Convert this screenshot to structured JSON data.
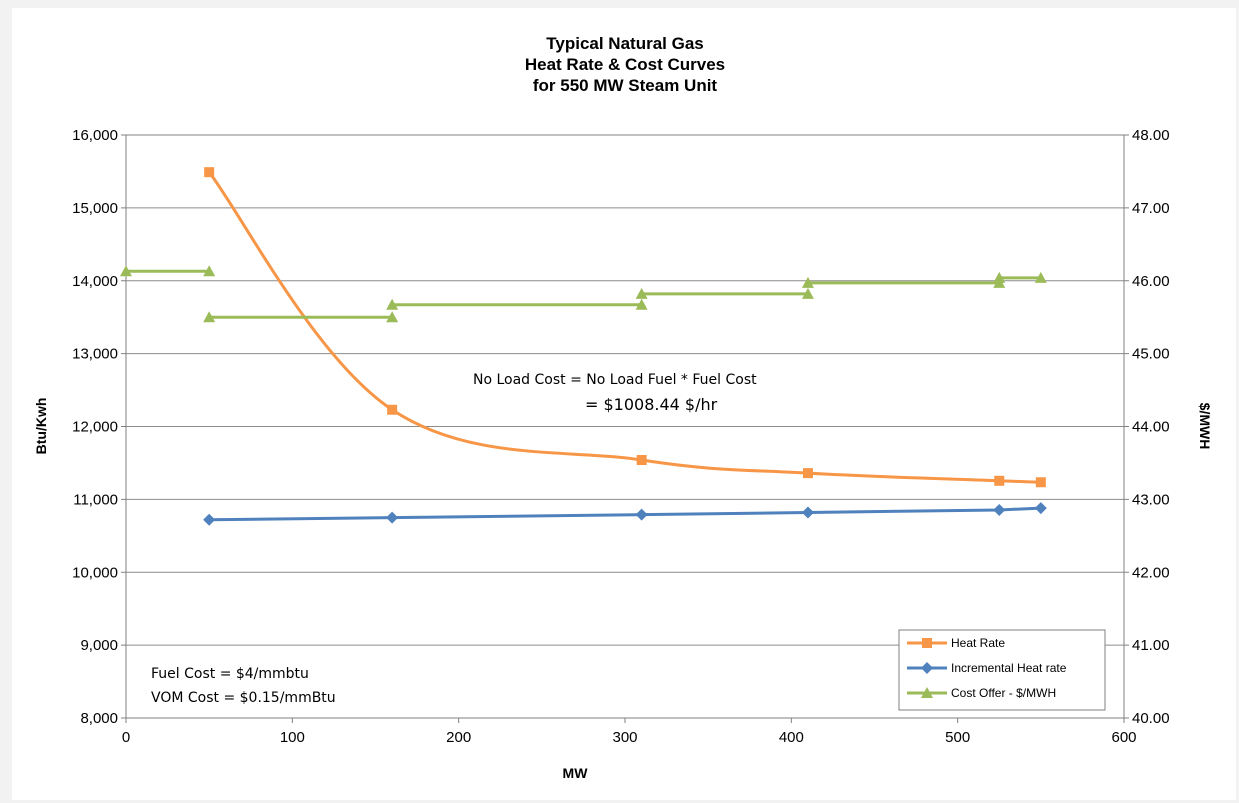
{
  "chart_data": {
    "type": "line",
    "title": [
      "Typical Natural Gas",
      "Heat Rate & Cost Curves",
      "for 550 MW Steam Unit"
    ],
    "xlabel": "MW",
    "ylabel": "Btu/Kwh",
    "y2label": "$/MWH",
    "xlim": [
      0,
      600
    ],
    "ylim": [
      8000,
      16000
    ],
    "y2lim": [
      40.0,
      48.0
    ],
    "x_ticks": [
      "0",
      "100",
      "200",
      "300",
      "400",
      "500",
      "600"
    ],
    "y_ticks": [
      "8,000",
      "9,000",
      "10,000",
      "11,000",
      "12,000",
      "13,000",
      "14,000",
      "15,000",
      "16,000"
    ],
    "y2_ticks": [
      "40.00",
      "41.00",
      "42.00",
      "43.00",
      "44.00",
      "45.00",
      "46.00",
      "47.00",
      "48.00"
    ],
    "grid": "horizontal",
    "legend_position": "bottom-right",
    "series": [
      {
        "name": "Heat Rate",
        "axis": "left",
        "color": "#f79646",
        "marker": "square",
        "smooth": true,
        "x": [
          50,
          160,
          310,
          410,
          525,
          550
        ],
        "y": [
          15490,
          12230,
          11540,
          11360,
          11255,
          11235
        ]
      },
      {
        "name": "Incremental Heat rate",
        "axis": "left",
        "color": "#4f81bd",
        "marker": "diamond",
        "smooth": false,
        "x": [
          50,
          160,
          310,
          410,
          525,
          550
        ],
        "y": [
          10720,
          10750,
          10790,
          10820,
          10855,
          10880
        ]
      },
      {
        "name": "Cost Offer - $/MWH",
        "axis": "right",
        "color": "#9bbb59",
        "marker": "triangle",
        "step": true,
        "segments": [
          {
            "x": [
              0,
              50
            ],
            "y": [
              46.13,
              46.13
            ]
          },
          {
            "x": [
              50,
              160
            ],
            "y": [
              45.5,
              45.5
            ]
          },
          {
            "x": [
              160,
              310
            ],
            "y": [
              45.67,
              45.67
            ]
          },
          {
            "x": [
              310,
              410
            ],
            "y": [
              45.82,
              45.82
            ]
          },
          {
            "x": [
              410,
              525
            ],
            "y": [
              45.97,
              45.97
            ]
          },
          {
            "x": [
              525,
              550
            ],
            "y": [
              46.04,
              46.04
            ]
          }
        ]
      }
    ],
    "annotations": {
      "no_load_line1": "No Load Cost = No Load Fuel * Fuel Cost",
      "no_load_line2": "= $1008.44 $/hr",
      "fuel_cost": "Fuel Cost = $4/mmbtu",
      "vom_cost": "VOM Cost = $0.15/mmBtu"
    }
  }
}
